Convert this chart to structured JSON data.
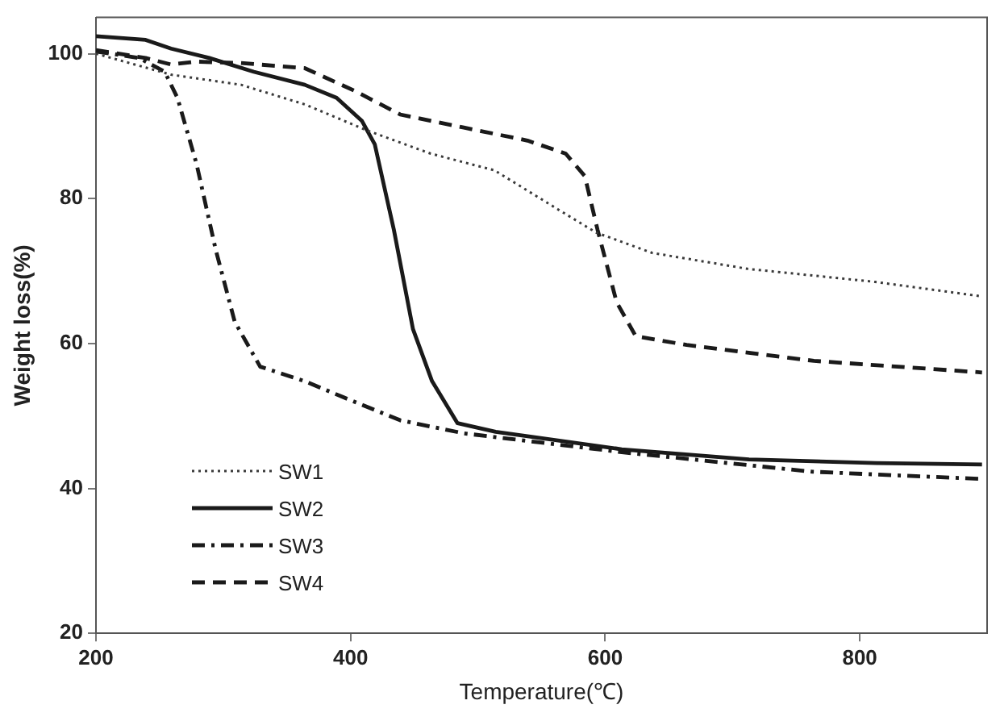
{
  "chart_data": {
    "type": "line",
    "xlabel": "Temperature(℃)",
    "ylabel": "Weight loss(%)",
    "xlim": [
      200,
      900
    ],
    "xticks": [
      200,
      400,
      600,
      800
    ],
    "ylim": [
      20,
      105
    ],
    "yticks": [
      20,
      40,
      60,
      80,
      100
    ],
    "grid": false,
    "legend": "bottom left",
    "marker": "none",
    "series": [
      {
        "name": "SW1",
        "color": "#3a3a3a",
        "line_style": "dotted",
        "x": [
          200,
          259,
          314,
          364,
          413,
          463,
          513,
          563,
          593,
          637,
          712,
          812,
          896
        ],
        "values": [
          100,
          97.1,
          95.7,
          93,
          89.4,
          86.2,
          83.9,
          78.5,
          75.3,
          72.5,
          70.3,
          68.5,
          66.5
        ]
      },
      {
        "name": "SW2",
        "color": "#1a1a1a",
        "line_style": "solid",
        "x": [
          200,
          239,
          259,
          289,
          324,
          364,
          389,
          409,
          419,
          434,
          449,
          464,
          484,
          514,
          613,
          713,
          813,
          896
        ],
        "values": [
          102.4,
          101.9,
          100.7,
          99.4,
          97.5,
          95.7,
          93.9,
          90.7,
          87.5,
          75.7,
          62,
          54.8,
          49,
          47.8,
          45.4,
          44,
          43.5,
          43.3
        ]
      },
      {
        "name": "SW3",
        "color": "#1a1a1a",
        "line_style": "dashdot",
        "x": [
          200,
          234,
          254,
          264,
          279,
          294,
          309,
          329,
          364,
          394,
          439,
          489,
          613,
          713,
          763,
          896
        ],
        "values": [
          100.3,
          99.4,
          97.5,
          93.9,
          84.8,
          73,
          63,
          56.8,
          54.8,
          52.6,
          49.4,
          47.6,
          45,
          43.2,
          42.3,
          41.3
        ]
      },
      {
        "name": "SW4",
        "color": "#1a1a1a",
        "line_style": "dashed",
        "x": [
          200,
          239,
          259,
          279,
          314,
          364,
          404,
          439,
          489,
          539,
          569,
          584,
          594,
          609,
          624,
          664,
          764,
          896
        ],
        "values": [
          100.5,
          99.4,
          98.5,
          98.9,
          98.7,
          98,
          94.8,
          91.6,
          89.8,
          88,
          86.2,
          83.1,
          75.7,
          65.7,
          61,
          59.8,
          57.6,
          56
        ]
      }
    ]
  }
}
